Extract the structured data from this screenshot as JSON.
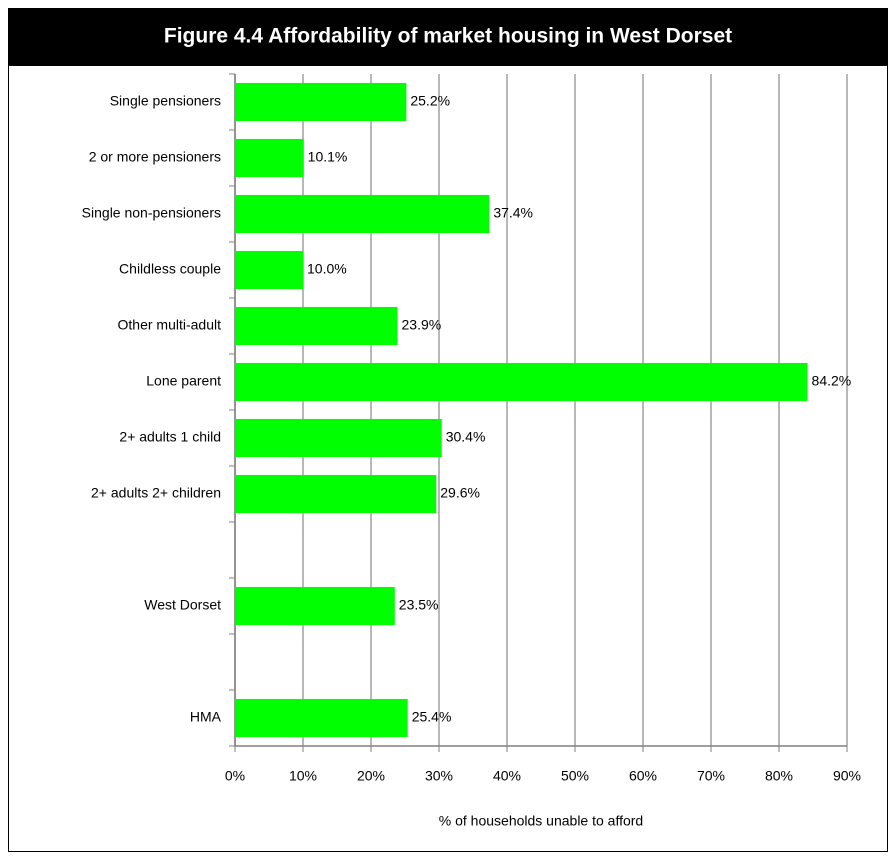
{
  "chart_data": {
    "type": "bar",
    "orientation": "horizontal",
    "title": "Figure 4.4 Affordability of market housing in West Dorset",
    "categories": [
      "Single pensioners",
      "2 or more pensioners",
      "Single non-pensioners",
      "Childless couple",
      "Other multi-adult",
      "Lone parent",
      "2+ adults 1 child",
      "2+ adults 2+ children",
      null,
      "West Dorset",
      null,
      "HMA"
    ],
    "values": [
      25.2,
      10.1,
      37.4,
      10.0,
      23.9,
      84.2,
      30.4,
      29.6,
      null,
      23.5,
      null,
      25.4
    ],
    "value_labels": [
      "25.2%",
      "10.1%",
      "37.4%",
      "10.0%",
      "23.9%",
      "84.2%",
      "30.4%",
      "29.6%",
      null,
      "23.5%",
      null,
      "25.4%"
    ],
    "color": "#00ff00",
    "xlabel": "% of households unable to afford",
    "xlim": [
      0,
      90
    ],
    "xticks": [
      {
        "value": 0,
        "label": "0%"
      },
      {
        "value": 10,
        "label": "10%"
      },
      {
        "value": 20,
        "label": "20%"
      },
      {
        "value": 30,
        "label": "30%"
      },
      {
        "value": 40,
        "label": "40%"
      },
      {
        "value": 50,
        "label": "50%"
      },
      {
        "value": 60,
        "label": "60%"
      },
      {
        "value": 70,
        "label": "70%"
      },
      {
        "value": 80,
        "label": "80%"
      },
      {
        "value": 90,
        "label": "90%"
      }
    ],
    "grid": true
  }
}
